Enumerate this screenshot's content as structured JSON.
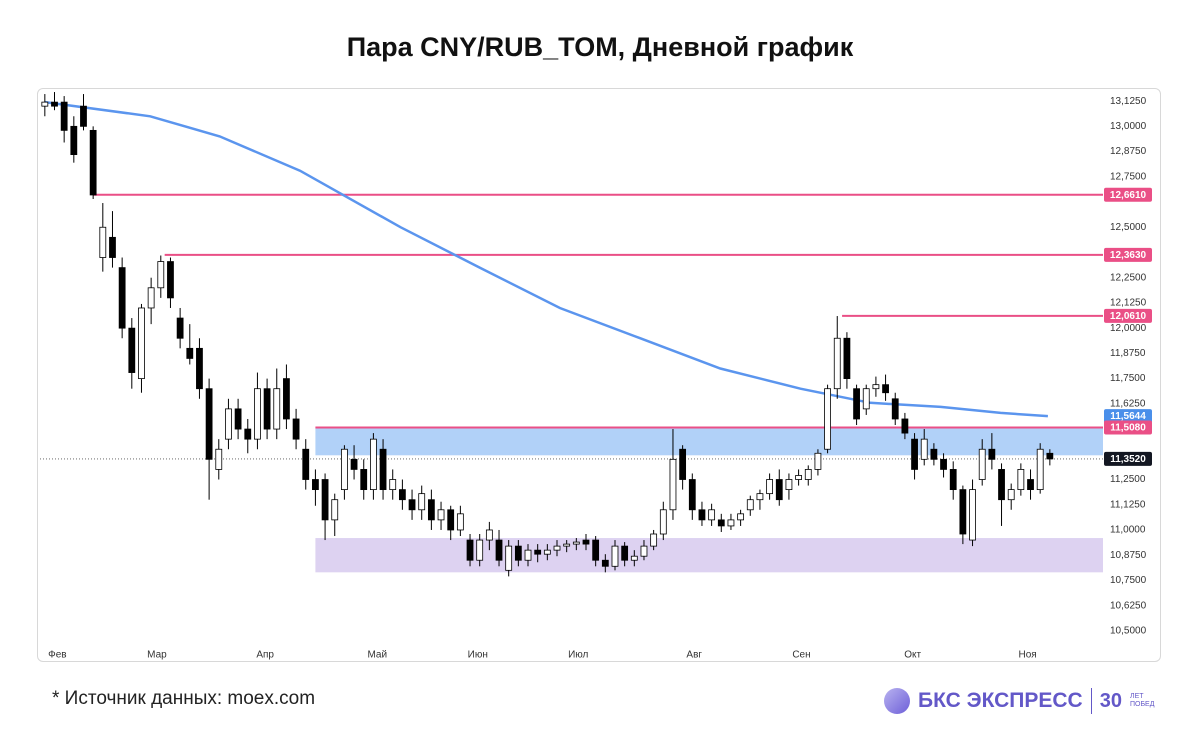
{
  "chart_data": {
    "type": "candlestick",
    "title": "Пара CNY/RUB_TOM, Дневной график",
    "source": "*  Источник данных: moex.com",
    "logo": {
      "brand": "БКС ЭКСПРЕСС",
      "years": "30",
      "years_caption": "ЛЕТ ПОБЕД"
    },
    "xlim": [
      0,
      110
    ],
    "xticks": [
      {
        "value": 1.8,
        "label": "Фев"
      },
      {
        "value": 12.1,
        "label": "Мар"
      },
      {
        "value": 23.3,
        "label": "Апр"
      },
      {
        "value": 34.9,
        "label": "Май"
      },
      {
        "value": 45.3,
        "label": "Июн"
      },
      {
        "value": 55.7,
        "label": "Июл"
      },
      {
        "value": 67.7,
        "label": "Авг"
      },
      {
        "value": 78.8,
        "label": "Сен"
      },
      {
        "value": 90.3,
        "label": "Окт"
      },
      {
        "value": 102.2,
        "label": "Ноя"
      }
    ],
    "ylim": [
      10.43,
      13.19
    ],
    "yticks": [
      {
        "value": 13.125,
        "label": "13,1250"
      },
      {
        "value": 13.0,
        "label": "13,0000"
      },
      {
        "value": 12.875,
        "label": "12,8750"
      },
      {
        "value": 12.75,
        "label": "12,7500"
      },
      {
        "value": 12.5,
        "label": "12,5000"
      },
      {
        "value": 12.25,
        "label": "12,2500"
      },
      {
        "value": 12.125,
        "label": "12,1250"
      },
      {
        "value": 12.0,
        "label": "12,0000"
      },
      {
        "value": 11.875,
        "label": "11,8750"
      },
      {
        "value": 11.75,
        "label": "11,7500"
      },
      {
        "value": 11.625,
        "label": "11,6250"
      },
      {
        "value": 11.25,
        "label": "11,2500"
      },
      {
        "value": 11.125,
        "label": "11,1250"
      },
      {
        "value": 11.0,
        "label": "11,0000"
      },
      {
        "value": 10.875,
        "label": "10,8750"
      },
      {
        "value": 10.75,
        "label": "10,7500"
      },
      {
        "value": 10.625,
        "label": "10,6250"
      },
      {
        "value": 10.5,
        "label": "10,5000"
      }
    ],
    "up_color": "#ffffff",
    "down_color": "#000000",
    "candles": [
      [
        13.1,
        13.16,
        13.05,
        13.12
      ],
      [
        13.12,
        13.17,
        13.08,
        13.1
      ],
      [
        13.12,
        13.15,
        12.92,
        12.98
      ],
      [
        13.0,
        13.05,
        12.82,
        12.86
      ],
      [
        13.1,
        13.16,
        12.98,
        13.0
      ],
      [
        12.98,
        13.0,
        12.64,
        12.66
      ],
      [
        12.35,
        12.62,
        12.28,
        12.5
      ],
      [
        12.45,
        12.58,
        12.3,
        12.35
      ],
      [
        12.3,
        12.35,
        11.95,
        12.0
      ],
      [
        12.0,
        12.05,
        11.7,
        11.78
      ],
      [
        11.75,
        12.12,
        11.68,
        12.1
      ],
      [
        12.1,
        12.25,
        12.02,
        12.2
      ],
      [
        12.2,
        12.36,
        12.15,
        12.33
      ],
      [
        12.33,
        12.35,
        12.1,
        12.15
      ],
      [
        12.05,
        12.1,
        11.9,
        11.95
      ],
      [
        11.9,
        12.02,
        11.82,
        11.85
      ],
      [
        11.9,
        11.95,
        11.65,
        11.7
      ],
      [
        11.7,
        11.75,
        11.15,
        11.35
      ],
      [
        11.3,
        11.45,
        11.25,
        11.4
      ],
      [
        11.45,
        11.65,
        11.4,
        11.6
      ],
      [
        11.6,
        11.65,
        11.45,
        11.5
      ],
      [
        11.5,
        11.55,
        11.38,
        11.45
      ],
      [
        11.45,
        11.78,
        11.4,
        11.7
      ],
      [
        11.7,
        11.75,
        11.45,
        11.5
      ],
      [
        11.5,
        11.8,
        11.45,
        11.7
      ],
      [
        11.75,
        11.82,
        11.5,
        11.55
      ],
      [
        11.55,
        11.6,
        11.4,
        11.45
      ],
      [
        11.4,
        11.45,
        11.2,
        11.25
      ],
      [
        11.25,
        11.3,
        11.12,
        11.2
      ],
      [
        11.25,
        11.28,
        10.95,
        11.05
      ],
      [
        11.05,
        11.18,
        10.97,
        11.15
      ],
      [
        11.2,
        11.42,
        11.15,
        11.4
      ],
      [
        11.35,
        11.42,
        11.25,
        11.3
      ],
      [
        11.3,
        11.35,
        11.15,
        11.2
      ],
      [
        11.2,
        11.48,
        11.15,
        11.45
      ],
      [
        11.4,
        11.45,
        11.15,
        11.2
      ],
      [
        11.2,
        11.3,
        11.15,
        11.25
      ],
      [
        11.2,
        11.25,
        11.1,
        11.15
      ],
      [
        11.15,
        11.2,
        11.05,
        11.1
      ],
      [
        11.1,
        11.22,
        11.05,
        11.18
      ],
      [
        11.15,
        11.2,
        11.0,
        11.05
      ],
      [
        11.05,
        11.14,
        11.0,
        11.1
      ],
      [
        11.1,
        11.12,
        10.95,
        11.0
      ],
      [
        11.0,
        11.12,
        10.97,
        11.08
      ],
      [
        10.95,
        10.98,
        10.82,
        10.85
      ],
      [
        10.85,
        10.98,
        10.82,
        10.95
      ],
      [
        10.95,
        11.04,
        10.9,
        11.0
      ],
      [
        10.95,
        11.0,
        10.82,
        10.85
      ],
      [
        10.8,
        10.95,
        10.77,
        10.92
      ],
      [
        10.92,
        10.95,
        10.82,
        10.85
      ],
      [
        10.85,
        10.93,
        10.82,
        10.9
      ],
      [
        10.9,
        10.93,
        10.84,
        10.88
      ],
      [
        10.88,
        10.93,
        10.85,
        10.9
      ],
      [
        10.9,
        10.95,
        10.87,
        10.92
      ],
      [
        10.92,
        10.95,
        10.89,
        10.93
      ],
      [
        10.93,
        10.96,
        10.9,
        10.94
      ],
      [
        10.95,
        10.98,
        10.9,
        10.93
      ],
      [
        10.95,
        10.97,
        10.82,
        10.85
      ],
      [
        10.85,
        10.88,
        10.79,
        10.82
      ],
      [
        10.82,
        10.95,
        10.8,
        10.92
      ],
      [
        10.92,
        10.94,
        10.82,
        10.85
      ],
      [
        10.85,
        10.9,
        10.82,
        10.87
      ],
      [
        10.87,
        10.95,
        10.85,
        10.92
      ],
      [
        10.92,
        11.0,
        10.9,
        10.98
      ],
      [
        10.98,
        11.14,
        10.95,
        11.1
      ],
      [
        11.1,
        11.5,
        11.05,
        11.35
      ],
      [
        11.4,
        11.42,
        11.2,
        11.25
      ],
      [
        11.25,
        11.28,
        11.05,
        11.1
      ],
      [
        11.1,
        11.14,
        11.02,
        11.05
      ],
      [
        11.05,
        11.13,
        11.02,
        11.1
      ],
      [
        11.05,
        11.08,
        10.99,
        11.02
      ],
      [
        11.02,
        11.08,
        11.0,
        11.05
      ],
      [
        11.05,
        11.1,
        11.02,
        11.08
      ],
      [
        11.1,
        11.17,
        11.07,
        11.15
      ],
      [
        11.15,
        11.2,
        11.1,
        11.18
      ],
      [
        11.18,
        11.28,
        11.15,
        11.25
      ],
      [
        11.25,
        11.3,
        11.12,
        11.15
      ],
      [
        11.2,
        11.28,
        11.15,
        11.25
      ],
      [
        11.25,
        11.3,
        11.22,
        11.27
      ],
      [
        11.25,
        11.32,
        11.22,
        11.3
      ],
      [
        11.3,
        11.4,
        11.27,
        11.38
      ],
      [
        11.4,
        11.72,
        11.38,
        11.7
      ],
      [
        11.7,
        12.06,
        11.65,
        11.95
      ],
      [
        11.95,
        11.98,
        11.7,
        11.75
      ],
      [
        11.7,
        11.72,
        11.52,
        11.55
      ],
      [
        11.6,
        11.72,
        11.57,
        11.7
      ],
      [
        11.7,
        11.76,
        11.66,
        11.72
      ],
      [
        11.72,
        11.77,
        11.64,
        11.68
      ],
      [
        11.65,
        11.68,
        11.52,
        11.55
      ],
      [
        11.55,
        11.58,
        11.45,
        11.48
      ],
      [
        11.45,
        11.48,
        11.25,
        11.3
      ],
      [
        11.35,
        11.5,
        11.32,
        11.45
      ],
      [
        11.4,
        11.43,
        11.32,
        11.35
      ],
      [
        11.35,
        11.38,
        11.26,
        11.3
      ],
      [
        11.3,
        11.34,
        11.15,
        11.2
      ],
      [
        11.2,
        11.22,
        10.93,
        10.98
      ],
      [
        10.95,
        11.25,
        10.92,
        11.2
      ],
      [
        11.25,
        11.45,
        11.22,
        11.4
      ],
      [
        11.4,
        11.48,
        11.3,
        11.35
      ],
      [
        11.3,
        11.33,
        11.02,
        11.15
      ],
      [
        11.15,
        11.23,
        11.1,
        11.2
      ],
      [
        11.2,
        11.33,
        11.17,
        11.3
      ],
      [
        11.25,
        11.3,
        11.15,
        11.2
      ],
      [
        11.2,
        11.43,
        11.18,
        11.4
      ],
      [
        11.38,
        11.4,
        11.32,
        11.352
      ]
    ],
    "ma": {
      "color": "#5b95ee",
      "x": [
        0.5,
        11.4,
        18.6,
        26.9,
        37.3,
        45.5,
        53.8,
        62.1,
        70.4,
        78.7,
        85.9,
        93.2,
        99.4,
        104.3
      ],
      "values": [
        13.12,
        13.05,
        12.95,
        12.78,
        12.5,
        12.3,
        12.1,
        11.95,
        11.8,
        11.7,
        11.63,
        11.61,
        11.58,
        11.5644
      ]
    },
    "zones": [
      {
        "from": 11.37,
        "to": 11.508,
        "x_start": 28.5,
        "x_end": 110,
        "color": "#a9ccf7"
      },
      {
        "from": 10.79,
        "to": 10.96,
        "x_start": 28.5,
        "x_end": 110,
        "color": "#d9cdef"
      }
    ],
    "levels": [
      {
        "value": 12.661,
        "label": "12,6610",
        "x_start": 5.5,
        "color": "#ea4f86",
        "style": "solid"
      },
      {
        "value": 12.363,
        "label": "12,3630",
        "x_start": 12.9,
        "color": "#ea4f86",
        "style": "solid"
      },
      {
        "value": 12.061,
        "label": "12,0610",
        "x_start": 83,
        "color": "#ea4f86",
        "style": "solid"
      },
      {
        "value": 11.5644,
        "label": "11,5644",
        "x_start": null,
        "color": "#4a8fea",
        "style": "none"
      },
      {
        "value": 11.508,
        "label": "11,5080",
        "x_start": 28.5,
        "color": "#ea4f86",
        "style": "solid"
      },
      {
        "value": 11.352,
        "label": "11,3520",
        "x_start": 0,
        "color": "#131722",
        "style": "dotted"
      }
    ]
  }
}
